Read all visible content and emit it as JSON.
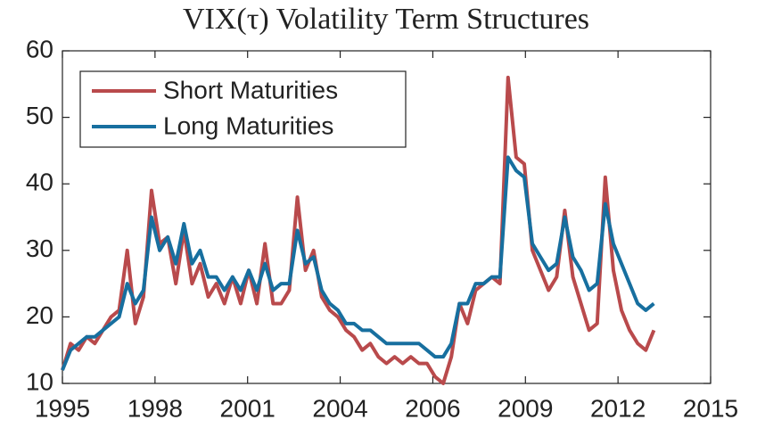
{
  "chart_data": {
    "type": "line",
    "title": "VIX(τ) Volatility Term Structures",
    "x": [
      1995.0,
      1995.25,
      1995.5,
      1995.75,
      1996.0,
      1996.25,
      1996.5,
      1996.75,
      1997.0,
      1997.25,
      1997.5,
      1997.75,
      1998.0,
      1998.25,
      1998.5,
      1998.75,
      1999.0,
      1999.25,
      1999.5,
      1999.75,
      2000.0,
      2000.25,
      2000.5,
      2000.75,
      2001.0,
      2001.25,
      2001.5,
      2001.75,
      2002.0,
      2002.25,
      2002.5,
      2002.75,
      2003.0,
      2003.25,
      2003.5,
      2003.75,
      2004.0,
      2004.25,
      2004.5,
      2004.75,
      2005.0,
      2005.25,
      2005.5,
      2005.75,
      2006.0,
      2006.25,
      2006.5,
      2006.75,
      2007.0,
      2007.25,
      2007.5,
      2007.75,
      2008.0,
      2008.25,
      2008.5,
      2008.75,
      2009.0,
      2009.25,
      2009.5,
      2009.75,
      2010.0,
      2010.25,
      2010.5,
      2010.75,
      2011.0,
      2011.25,
      2011.5,
      2011.75,
      2012.0,
      2012.25,
      2012.5,
      2012.75,
      2013.0,
      2013.25
    ],
    "series": [
      {
        "name": "Short Maturities",
        "color": "#b94a4c",
        "values": [
          12,
          16,
          15,
          17,
          16,
          18,
          20,
          21,
          30,
          19,
          23,
          39,
          31,
          32,
          25,
          33,
          25,
          28,
          23,
          25,
          22,
          26,
          22,
          27,
          22,
          31,
          22,
          22,
          24,
          38,
          27,
          30,
          23,
          21,
          20,
          18,
          17,
          15,
          16,
          14,
          13,
          14,
          13,
          14,
          13,
          13,
          11,
          10,
          14,
          22,
          19,
          24,
          25,
          26,
          25,
          56,
          44,
          43,
          30,
          27,
          24,
          26,
          36,
          26,
          22,
          18,
          19,
          41,
          27,
          21,
          18,
          16,
          15,
          18
        ]
      },
      {
        "name": "Long Maturities",
        "color": "#176f9f",
        "values": [
          12,
          15,
          16,
          17,
          17,
          18,
          19,
          20,
          25,
          22,
          24,
          35,
          30,
          32,
          28,
          34,
          28,
          30,
          26,
          26,
          24,
          26,
          24,
          27,
          24,
          28,
          24,
          25,
          25,
          33,
          28,
          29,
          24,
          22,
          21,
          19,
          19,
          18,
          18,
          17,
          16,
          16,
          16,
          16,
          16,
          15,
          14,
          14,
          16,
          22,
          22,
          25,
          25,
          26,
          26,
          44,
          42,
          41,
          31,
          29,
          27,
          28,
          35,
          29,
          27,
          24,
          25,
          37,
          31,
          28,
          25,
          22,
          21,
          22
        ]
      }
    ],
    "xlim": [
      1995,
      2015
    ],
    "xticks": [
      {
        "value": 1995,
        "label": "1995"
      },
      {
        "value": 1997.857,
        "label": "1998"
      },
      {
        "value": 2000.714,
        "label": "2001"
      },
      {
        "value": 2003.571,
        "label": "2004"
      },
      {
        "value": 2006.429,
        "label": "2006"
      },
      {
        "value": 2009.286,
        "label": "2009"
      },
      {
        "value": 2012.143,
        "label": "2012"
      },
      {
        "value": 2015,
        "label": "2015"
      }
    ],
    "ylim": [
      10,
      60
    ],
    "yticks": [
      10,
      20,
      30,
      40,
      50,
      60
    ],
    "legend": "upper-left"
  }
}
